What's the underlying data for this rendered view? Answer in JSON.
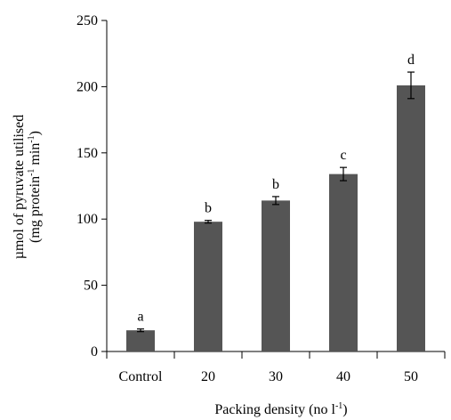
{
  "chart_data": {
    "type": "bar",
    "categories": [
      "Control",
      "20",
      "30",
      "40",
      "50"
    ],
    "values": [
      16,
      98,
      114,
      134,
      201
    ],
    "errors": [
      1,
      1,
      3,
      5,
      10
    ],
    "significance": [
      "a",
      "b",
      "b",
      "c",
      "d"
    ],
    "title": "",
    "xlabel": {
      "text": "Packing density (no l",
      "sup": "-1",
      "tail": ")"
    },
    "ylabel": {
      "line1": "µmol of pyruvate utilised",
      "line2_a": "(mg protein",
      "line2_sup1": "-1",
      "line2_b": " min",
      "line2_sup2": "-1",
      "line2_c": ")"
    },
    "ylim": [
      0,
      250
    ],
    "yticks": [
      0,
      50,
      100,
      150,
      200,
      250
    ],
    "bar_color": "#555555",
    "grid": false,
    "legend": "none"
  }
}
